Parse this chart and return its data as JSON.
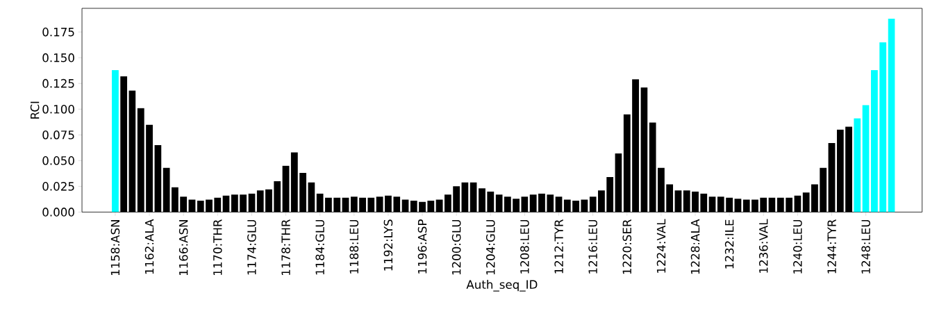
{
  "chart_data": {
    "type": "bar",
    "xlabel": "Auth_seq_ID",
    "ylabel": "RCI",
    "categories": [
      "1158:ASN",
      null,
      null,
      null,
      "1162:ALA",
      null,
      null,
      null,
      "1166:ASN",
      null,
      null,
      null,
      "1170:THR",
      null,
      null,
      null,
      "1174:GLU",
      null,
      null,
      null,
      "1178:THR",
      null,
      null,
      null,
      "1184:GLU",
      null,
      null,
      null,
      "1188:LEU",
      null,
      null,
      null,
      "1192:LYS",
      null,
      null,
      null,
      "1196:ASP",
      null,
      null,
      null,
      "1200:GLU",
      null,
      null,
      null,
      "1204:GLU",
      null,
      null,
      null,
      "1208:LEU",
      null,
      null,
      null,
      "1212:TYR",
      null,
      null,
      null,
      "1216:LEU",
      null,
      null,
      null,
      "1220:SER",
      null,
      null,
      null,
      "1224:VAL",
      null,
      null,
      null,
      "1228:ALA",
      null,
      null,
      null,
      "1232:ILE",
      null,
      null,
      null,
      "1236:VAL",
      null,
      null,
      null,
      "1240:LEU",
      null,
      null,
      null,
      "1244:TYR",
      null,
      null,
      null,
      "1248:LEU",
      null,
      null,
      null
    ],
    "values": [
      0.138,
      0.132,
      0.118,
      0.101,
      0.085,
      0.065,
      0.043,
      0.024,
      0.015,
      0.012,
      0.011,
      0.012,
      0.014,
      0.016,
      0.017,
      0.017,
      0.018,
      0.021,
      0.022,
      0.03,
      0.045,
      0.058,
      0.038,
      0.029,
      0.018,
      0.014,
      0.014,
      0.014,
      0.015,
      0.014,
      0.014,
      0.015,
      0.016,
      0.015,
      0.012,
      0.011,
      0.01,
      0.011,
      0.012,
      0.017,
      0.025,
      0.029,
      0.029,
      0.023,
      0.02,
      0.017,
      0.015,
      0.013,
      0.015,
      0.017,
      0.018,
      0.017,
      0.015,
      0.012,
      0.011,
      0.012,
      0.015,
      0.021,
      0.034,
      0.057,
      0.095,
      0.129,
      0.121,
      0.087,
      0.043,
      0.027,
      0.021,
      0.021,
      0.02,
      0.018,
      0.015,
      0.015,
      0.014,
      0.013,
      0.012,
      0.012,
      0.014,
      0.014,
      0.014,
      0.014,
      0.016,
      0.019,
      0.027,
      0.043,
      0.067,
      0.08,
      0.083,
      0.091,
      0.104,
      0.138,
      0.165,
      0.188
    ],
    "colors": [
      "#00ffff",
      "#000000",
      "#000000",
      "#000000",
      "#000000",
      "#000000",
      "#000000",
      "#000000",
      "#000000",
      "#000000",
      "#000000",
      "#000000",
      "#000000",
      "#000000",
      "#000000",
      "#000000",
      "#000000",
      "#000000",
      "#000000",
      "#000000",
      "#000000",
      "#000000",
      "#000000",
      "#000000",
      "#000000",
      "#000000",
      "#000000",
      "#000000",
      "#000000",
      "#000000",
      "#000000",
      "#000000",
      "#000000",
      "#000000",
      "#000000",
      "#000000",
      "#000000",
      "#000000",
      "#000000",
      "#000000",
      "#000000",
      "#000000",
      "#000000",
      "#000000",
      "#000000",
      "#000000",
      "#000000",
      "#000000",
      "#000000",
      "#000000",
      "#000000",
      "#000000",
      "#000000",
      "#000000",
      "#000000",
      "#000000",
      "#000000",
      "#000000",
      "#000000",
      "#000000",
      "#000000",
      "#000000",
      "#000000",
      "#000000",
      "#000000",
      "#000000",
      "#000000",
      "#000000",
      "#000000",
      "#000000",
      "#000000",
      "#000000",
      "#000000",
      "#000000",
      "#000000",
      "#000000",
      "#000000",
      "#000000",
      "#000000",
      "#000000",
      "#000000",
      "#000000",
      "#000000",
      "#000000",
      "#000000",
      "#000000",
      "#000000",
      "#00ffff",
      "#00ffff",
      "#00ffff",
      "#00ffff",
      "#00ffff"
    ],
    "ylim": [
      0,
      0.198
    ],
    "yticks": [
      {
        "value": 0,
        "label": "0.000"
      },
      {
        "value": 0.025,
        "label": "0.025"
      },
      {
        "value": 0.05,
        "label": "0.050"
      },
      {
        "value": 0.075,
        "label": "0.075"
      },
      {
        "value": 0.1,
        "label": "0.100"
      },
      {
        "value": 0.125,
        "label": "0.125"
      },
      {
        "value": 0.15,
        "label": "0.150"
      },
      {
        "value": 0.175,
        "label": "0.175"
      }
    ]
  }
}
